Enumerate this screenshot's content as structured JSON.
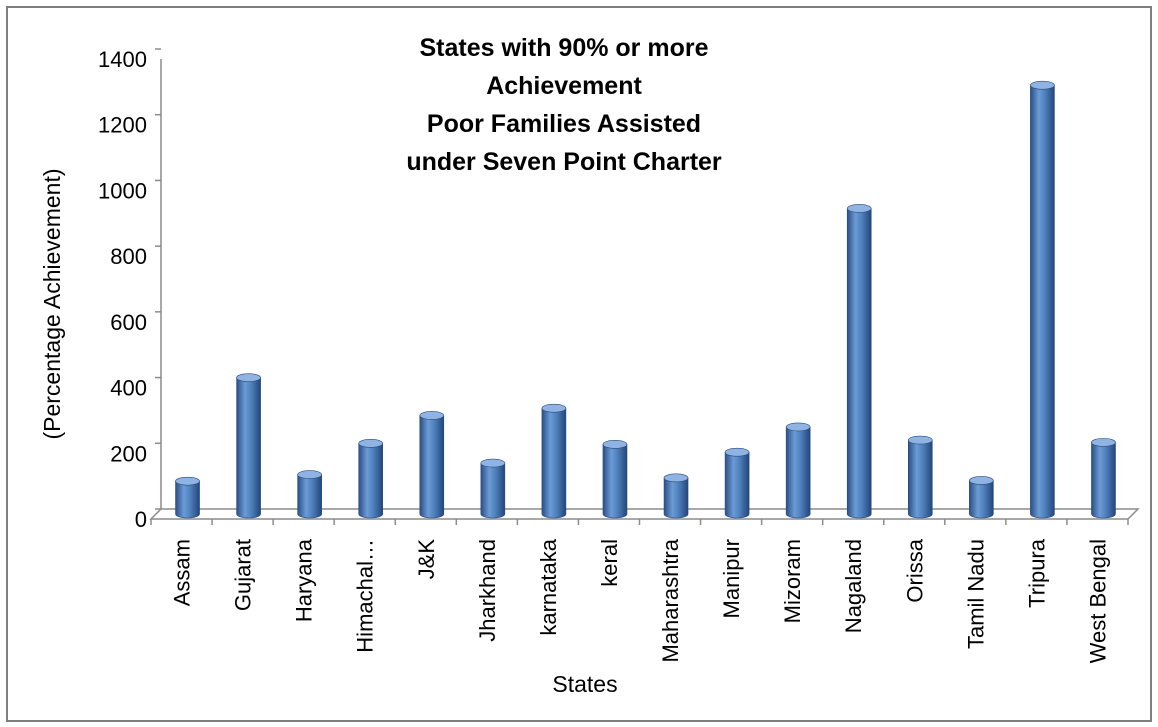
{
  "chart_data": {
    "type": "bar",
    "title_lines": [
      "States with 90% or more",
      "Achievement",
      "Poor Families Assisted",
      "under Seven Point Charter"
    ],
    "xlabel": "States",
    "ylabel": "(Percentage Achievement)",
    "ylim": [
      0,
      1400
    ],
    "yticks": [
      "0",
      "200",
      "400",
      "600",
      "800",
      "1000",
      "1200",
      "1400"
    ],
    "categories": [
      "Assam",
      "Gujarat",
      "Haryana",
      "Himachal…",
      "J&K",
      "Jharkhand",
      "karnataka",
      "keral",
      "Maharashtra",
      "Manipur",
      "Mizoram",
      "Nagaland",
      "Orissa",
      "Tamil Nadu",
      "Tripura",
      "West Bengal"
    ],
    "values": [
      100,
      415,
      120,
      215,
      300,
      155,
      322,
      212,
      110,
      188,
      265,
      930,
      225,
      102,
      1305,
      218
    ],
    "bar_color": "#4F81BD",
    "bar_style": "3d-cylinder",
    "grid": false,
    "legend": "none"
  }
}
